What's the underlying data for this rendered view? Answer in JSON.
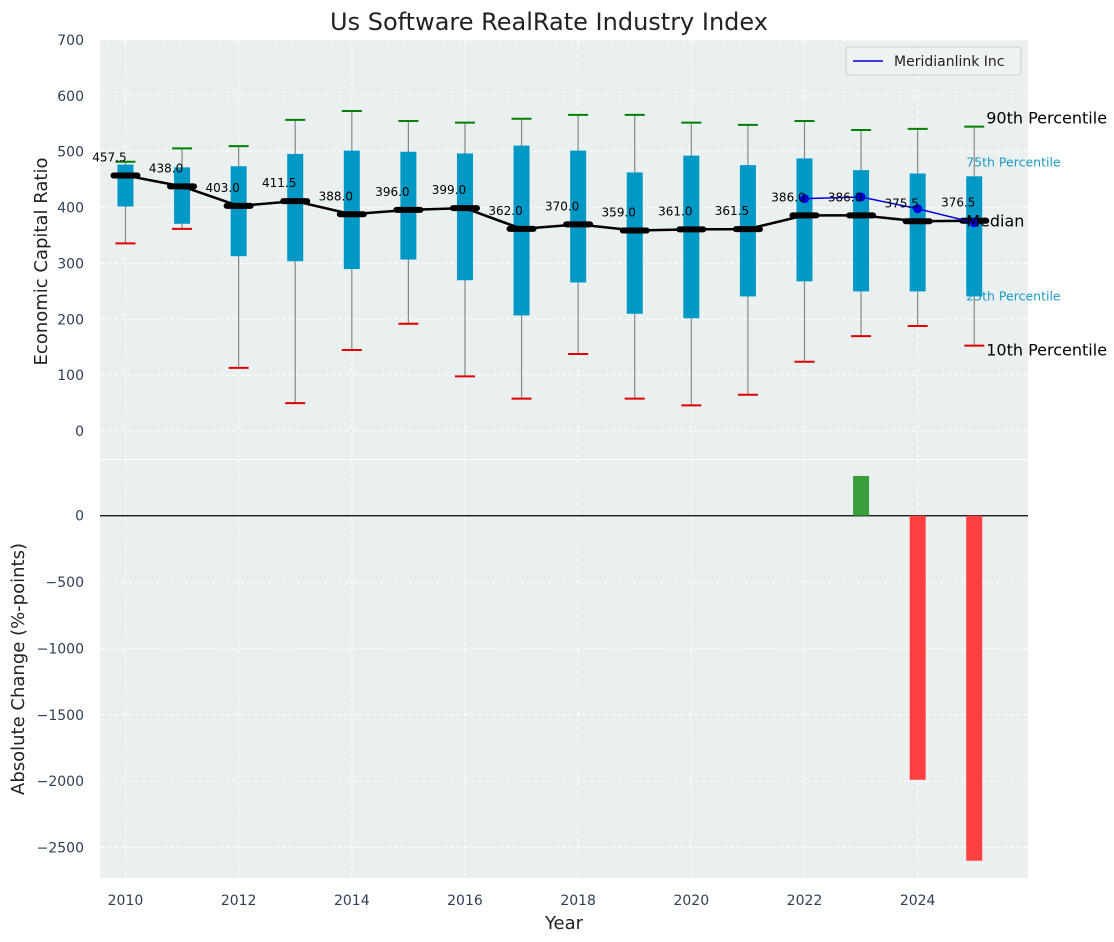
{
  "chart_data": {
    "type": "box",
    "title": "Us Software RealRate Industry Index",
    "xlabel": "Year",
    "colors": {
      "background": "#eaeff0",
      "grid": "#ffffff",
      "box": "#0099c6",
      "whisker": "#888888",
      "cap_top": "#008000",
      "cap_bottom": "#e00000",
      "median": "#000000",
      "company": "#0000dd",
      "increase": "#3a9e3a",
      "decrease": "#ff4040",
      "pct_label": "#1d9bc4"
    },
    "top_panel": {
      "ylabel": "Economic Capital Ratio",
      "ylim": [
        -50,
        700
      ],
      "yticks": [
        0,
        100,
        200,
        300,
        400,
        500,
        600,
        700
      ],
      "years": [
        2010,
        2011,
        2012,
        2013,
        2014,
        2015,
        2016,
        2017,
        2018,
        2019,
        2020,
        2021,
        2022,
        2023,
        2024,
        2025
      ],
      "p10": [
        336,
        362,
        113,
        50,
        145,
        192,
        98,
        58,
        138,
        58,
        46,
        65,
        124,
        170,
        188,
        153
      ],
      "p25": [
        402,
        371,
        313,
        304,
        290,
        307,
        270,
        207,
        266,
        210,
        202,
        241,
        268,
        250,
        250,
        241
      ],
      "median": [
        457.5,
        438.0,
        403.0,
        411.5,
        388.0,
        396.0,
        399.0,
        362.0,
        370.0,
        359.0,
        361.0,
        361.5,
        386.0,
        386.0,
        375.5,
        376.5
      ],
      "median_labels": [
        "457.5",
        "438.0",
        "403.0",
        "411.5",
        "388.0",
        "396.0",
        "399.0",
        "362.0",
        "370.0",
        "359.0",
        "361.0",
        "361.5",
        "386.0",
        "386.0",
        "375.5",
        "376.5"
      ],
      "p75": [
        477,
        472,
        474,
        496,
        502,
        500,
        497,
        511,
        502,
        463,
        493,
        476,
        488,
        467,
        461,
        456
      ],
      "p90": [
        482,
        506,
        510,
        557,
        573,
        555,
        552,
        559,
        566,
        566,
        552,
        548,
        555,
        539,
        541,
        545
      ],
      "company_series": {
        "name": "Meridianlink Inc",
        "x": [
          2022,
          2023,
          2024,
          2025
        ],
        "y": [
          416,
          419,
          398,
          373
        ]
      },
      "percentile_labels": {
        "p90": "90th Percentile",
        "p75": "75th Percentile",
        "median": "Median",
        "p25": "25th Percentile",
        "p10": "10th Percentile"
      }
    },
    "bottom_panel": {
      "ylabel": "Absolute Change (%-points)",
      "ylim": [
        -2730,
        420
      ],
      "yticks": [
        -2500,
        -2000,
        -1500,
        -1000,
        -500,
        0
      ],
      "ytick_labels": [
        "−2500",
        "−2000",
        "−1500",
        "−1000",
        "−500",
        "0"
      ],
      "bars": [
        {
          "x": 2023,
          "value": 300
        },
        {
          "x": 2024,
          "value": -1990
        },
        {
          "x": 2025,
          "value": -2600
        }
      ]
    },
    "xlim": [
      2009.55,
      2025.95
    ],
    "xticks": [
      2010,
      2012,
      2014,
      2016,
      2018,
      2020,
      2022,
      2024
    ],
    "legend": {
      "position": "top-right",
      "entries": [
        "Meridianlink Inc"
      ]
    }
  }
}
